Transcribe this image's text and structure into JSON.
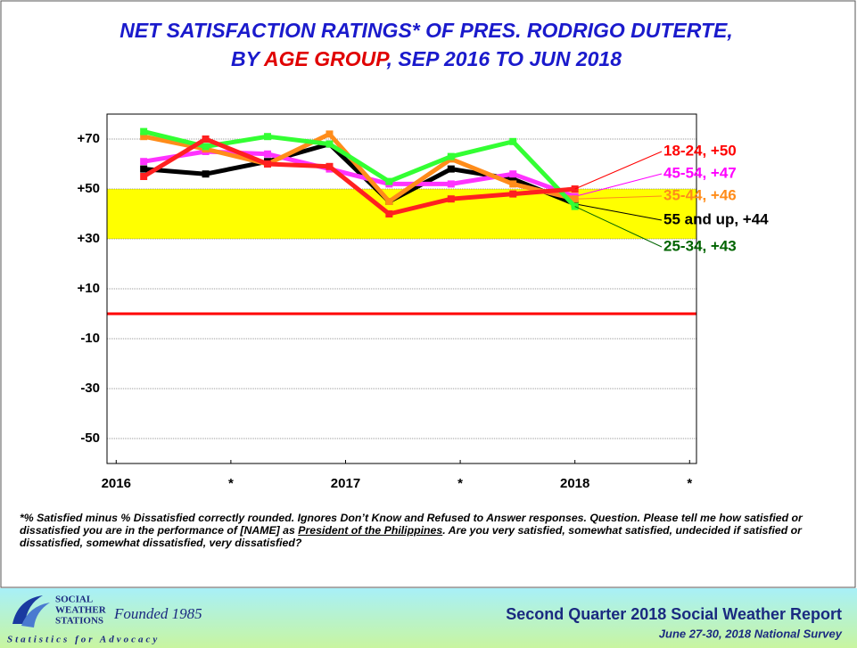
{
  "chart_data": {
    "type": "line",
    "title": "NET SATISFACTION RATINGS* OF PRES. RODRIGO DUTERTE,",
    "subtitle_parts": [
      "BY ",
      "AGE GROUP",
      ", SEP 2016 TO JUN 2018"
    ],
    "x": [
      2016.12,
      2016.39,
      2016.66,
      2016.93,
      2017.19,
      2017.46,
      2017.73,
      2018.0
    ],
    "xlim": [
      2015.96,
      2018.53
    ],
    "xticks": [
      2016,
      {
        "value": 2016.5,
        "label": "*"
      },
      2017,
      {
        "value": 2017.5,
        "label": "*"
      },
      2018,
      {
        "value": 2018.5,
        "label": "*"
      }
    ],
    "ylim": [
      -60,
      80
    ],
    "yticks": [
      {
        "value": 70,
        "label": "+70"
      },
      {
        "value": 50,
        "label": "+50"
      },
      {
        "value": 30,
        "label": "+30"
      },
      {
        "value": 10,
        "label": "+10"
      },
      -10,
      -30,
      -50
    ],
    "grid": true,
    "highlight_band": [
      30,
      50
    ],
    "highlight_color": "#ffff00",
    "reference_line": 0,
    "reference_color": "#ff0000",
    "series": [
      {
        "name": "55 and up, +44",
        "color": "#000000",
        "label_color": "#000000",
        "values": [
          58,
          56,
          61,
          68,
          45,
          58,
          54,
          44
        ]
      },
      {
        "name": "45-54, +47",
        "color": "#ff33ff",
        "label_color": "#ff00ff",
        "values": [
          61,
          65,
          64,
          58,
          52,
          52,
          56,
          47
        ]
      },
      {
        "name": "35-44, +46",
        "color": "#ff8c1a",
        "label_color": "#ff8c1a",
        "values": [
          71,
          66,
          60,
          72,
          45,
          62,
          52,
          46
        ]
      },
      {
        "name": "25-34, +43",
        "color": "#33ff33",
        "label_color": "#006400",
        "values": [
          73,
          67,
          71,
          68,
          53,
          63,
          69,
          43
        ]
      },
      {
        "name": "18-24, +50",
        "color": "#ff2020",
        "label_color": "#ff0000",
        "values": [
          55,
          70,
          60,
          59,
          40,
          46,
          48,
          50
        ]
      }
    ]
  },
  "footnote": {
    "before": "*% Satisfied minus % Dissatisfied correctly rounded. Ignores Don’t Know and Refused to Answer responses. Question. Please tell me how satisfied or dissatisfied you are in the performance of [NAME] as ",
    "underlined": "President of the Philippines",
    "after": ".  Are you very satisfied, somewhat satisfied, undecided if satisfied or dissatisfied, somewhat dissatisfied, very dissatisfied?"
  },
  "footer": {
    "logo_lines": [
      "SOCIAL",
      "WEATHER",
      "STATIONS"
    ],
    "founded": "Founded 1985",
    "tagline": "Statistics for Advocacy",
    "report": "Second Quarter 2018 Social Weather Report",
    "survey": "June 27-30, 2018 National Survey"
  }
}
